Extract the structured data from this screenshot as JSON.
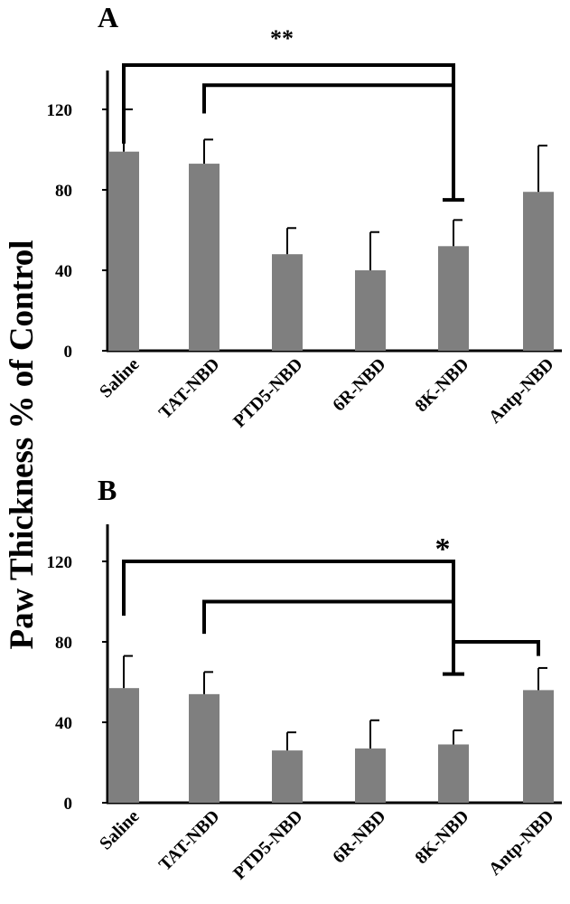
{
  "ylabel": "Paw Thickness % of Control",
  "colors": {
    "bar": "#7f7f7f",
    "axis": "#000000"
  },
  "chart_data": [
    {
      "type": "bar",
      "panel": "A",
      "categories": [
        "Saline",
        "TAT-NBD",
        "PTD5-NBD",
        "6R-NBD",
        "8K-NBD",
        "Antp-NBD"
      ],
      "values": [
        99,
        93,
        48,
        40,
        52,
        79
      ],
      "errors": [
        21,
        12,
        13,
        19,
        13,
        23
      ],
      "yticks": [
        0,
        40,
        80,
        120
      ],
      "ylim": [
        0,
        140
      ],
      "significance": "**",
      "brackets": [
        {
          "from": "Saline",
          "to": "8K-NBD",
          "top": 142
        },
        {
          "from": "TAT-NBD",
          "to": "8K-NBD",
          "top": 132
        }
      ]
    },
    {
      "type": "bar",
      "panel": "B",
      "categories": [
        "Saline",
        "TAT-NBD",
        "PTD5-NBD",
        "6R-NBD",
        "8K-NBD",
        "Antp-NBD"
      ],
      "values": [
        57,
        54,
        26,
        27,
        29,
        56
      ],
      "errors": [
        16,
        11,
        9,
        14,
        7,
        11
      ],
      "yticks": [
        0,
        40,
        80,
        120
      ],
      "ylim": [
        0,
        140
      ],
      "significance": "*",
      "brackets": [
        {
          "from": "Saline",
          "to": "8K-NBD",
          "top": 120
        },
        {
          "from": "TAT-NBD",
          "to": "8K-NBD",
          "top": 100
        },
        {
          "from": "Antp-NBD",
          "to": "8K-NBD",
          "top": 80
        }
      ]
    }
  ]
}
